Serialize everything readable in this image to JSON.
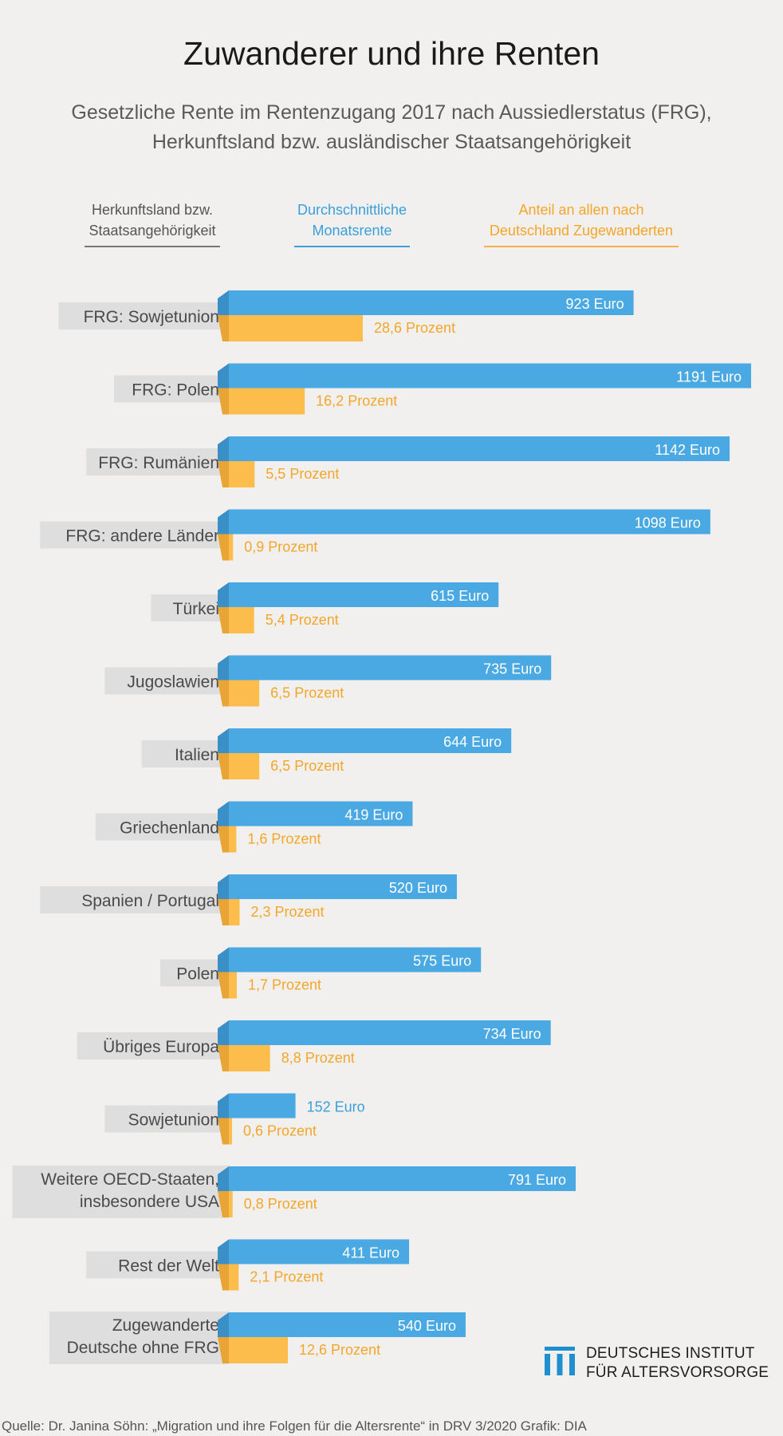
{
  "title": "Zuwanderer und ihre Renten",
  "subtitle_line1": "Gesetzliche Rente im Rentenzugang 2017 nach Aussiedlerstatus (FRG),",
  "subtitle_line2": "Herkunftsland bzw. ausländischer Staatsangehörigkeit",
  "headers": {
    "country_line1": "Herkunftsland bzw.",
    "country_line2": "Staatsangehörigkeit",
    "rent_line1": "Durchschnittliche",
    "rent_line2": "Monatsrente",
    "share_line1": "Anteil an allen nach",
    "share_line2": "Deutschland Zugewanderten"
  },
  "colors": {
    "rent": "#4aa9e2",
    "rent_dark": "#3a8fc6",
    "share": "#fdbd4c",
    "share_dark": "#e8a536",
    "share_text": "#f4a62a",
    "label_bg": "#dedede"
  },
  "chart_data": {
    "type": "bar",
    "categories": [
      [
        "FRG: Sowjetunion"
      ],
      [
        "FRG: Polen"
      ],
      [
        "FRG: Rumänien"
      ],
      [
        "FRG: andere Länder"
      ],
      [
        "Türkei"
      ],
      [
        "Jugoslawien"
      ],
      [
        "Italien"
      ],
      [
        "Griechenland"
      ],
      [
        "Spanien / Portugal"
      ],
      [
        "Polen"
      ],
      [
        "Übriges Europa"
      ],
      [
        "Sowjetunion"
      ],
      [
        "Weitere OECD-Staaten,",
        "insbesondere USA"
      ],
      [
        "Rest der Welt"
      ],
      [
        "Zugewanderte",
        "Deutsche ohne FRG"
      ]
    ],
    "series": [
      {
        "name": "Durchschnittliche Monatsrente",
        "unit": "Euro",
        "values": [
          923,
          1191,
          1142,
          1098,
          615,
          735,
          644,
          419,
          520,
          575,
          734,
          152,
          791,
          411,
          540
        ]
      },
      {
        "name": "Anteil an allen nach Deutschland Zugewanderten",
        "unit": "Prozent",
        "values": [
          28.6,
          16.2,
          5.5,
          0.9,
          5.4,
          6.5,
          6.5,
          1.6,
          2.3,
          1.7,
          8.8,
          0.6,
          0.8,
          2.1,
          12.6
        ]
      }
    ]
  },
  "logo": {
    "line1": "DEUTSCHES INSTITUT",
    "line2": "FÜR ALTERSVORSORGE"
  },
  "source": "Quelle: Dr. Janina Söhn: „Migration und ihre Folgen für die Altersrente“ in DRV 3/2020  Grafik: DIA"
}
